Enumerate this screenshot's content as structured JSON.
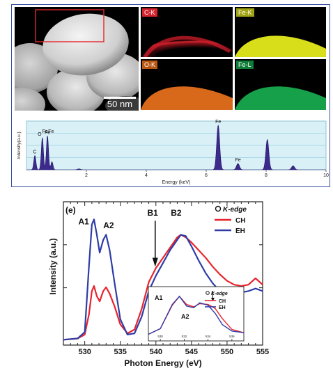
{
  "top_panel": {
    "scale_bar_label": "50 nm",
    "maps": [
      {
        "label": "C-K",
        "color": "#d4232e"
      },
      {
        "label": "Fe-K",
        "color": "#e3e81e"
      },
      {
        "label": "O-K",
        "color": "#e0701c"
      },
      {
        "label": "Fe-L",
        "color": "#17a24a"
      }
    ]
  },
  "chart_data": [
    {
      "type": "area",
      "title": "",
      "xlabel": "Energy (keV)",
      "ylabel": "Intensity(a.u.)",
      "xlim": [
        0,
        10
      ],
      "x_ticks": [
        "2",
        "4",
        "6",
        "8",
        "10"
      ],
      "grid": true,
      "fill_color": "#3d2a8c",
      "peaks": [
        {
          "label": "C",
          "x": 0.28,
          "y": 0.32
        },
        {
          "label": "O",
          "x": 0.53,
          "y": 0.72
        },
        {
          "label": "Fe",
          "x": 0.7,
          "y": 0.76
        },
        {
          "label": "",
          "x": 0.85,
          "y": 0.18
        },
        {
          "label": "",
          "x": 1.75,
          "y": 0.02
        },
        {
          "label": "Fe",
          "x": 6.4,
          "y": 1.0
        },
        {
          "label": "Fe",
          "x": 7.06,
          "y": 0.14
        },
        {
          "label": "",
          "x": 8.04,
          "y": 0.68
        },
        {
          "label": "",
          "x": 8.9,
          "y": 0.09
        }
      ],
      "top_labels": [
        "Fe",
        "Fe"
      ]
    },
    {
      "type": "line",
      "panel_label": "(e)",
      "title": "",
      "xlabel": "Photon Energy (eV)",
      "ylabel": "Intensity (a.u.)",
      "xlim": [
        527,
        555
      ],
      "x_ticks": [
        530,
        535,
        540,
        545,
        550,
        555
      ],
      "legend": {
        "title": "O K-edge",
        "placement": "top-right"
      },
      "annotations": [
        "A1",
        "A2",
        "B1",
        "B2"
      ],
      "series": [
        {
          "name": "CH",
          "color": "#e8242e",
          "x": [
            527,
            529,
            530,
            530.6,
            531.0,
            531.3,
            531.7,
            532.1,
            532.6,
            533.0,
            533.5,
            534.2,
            535,
            536,
            537,
            538,
            539,
            540,
            541,
            542,
            543,
            543.5,
            544.2,
            545,
            546,
            547,
            548,
            549,
            550,
            551,
            552,
            553,
            554,
            555
          ],
          "y": [
            0.02,
            0.03,
            0.06,
            0.22,
            0.4,
            0.44,
            0.36,
            0.32,
            0.4,
            0.43,
            0.38,
            0.28,
            0.14,
            0.07,
            0.1,
            0.26,
            0.47,
            0.58,
            0.66,
            0.74,
            0.82,
            0.84,
            0.82,
            0.78,
            0.72,
            0.66,
            0.59,
            0.53,
            0.48,
            0.45,
            0.44,
            0.45,
            0.5,
            0.45
          ]
        },
        {
          "name": "EH",
          "color": "#2e3da6",
          "x": [
            527,
            529,
            530,
            530.6,
            531.0,
            531.3,
            531.7,
            532.1,
            532.6,
            533.0,
            533.5,
            534.2,
            535,
            536,
            537,
            538,
            539,
            540,
            541,
            542,
            543,
            543.5,
            544.2,
            545,
            546,
            547,
            548,
            549,
            550,
            551,
            552,
            553,
            554,
            555
          ],
          "y": [
            0.02,
            0.03,
            0.08,
            0.6,
            0.92,
            0.96,
            0.84,
            0.7,
            0.8,
            0.84,
            0.72,
            0.46,
            0.18,
            0.06,
            0.07,
            0.2,
            0.4,
            0.52,
            0.62,
            0.72,
            0.8,
            0.84,
            0.83,
            0.75,
            0.64,
            0.54,
            0.46,
            0.4,
            0.39,
            0.38,
            0.39,
            0.4,
            0.42,
            0.4
          ]
        }
      ]
    },
    {
      "type": "line",
      "inset": true,
      "title": "",
      "xlim": [
        529,
        537
      ],
      "x_ticks": [
        "530",
        "532",
        "534",
        "536"
      ],
      "legend": {
        "title": "O K-edge",
        "placement": "top-right"
      },
      "annotations": [
        "A1",
        "A2"
      ],
      "series": [
        {
          "name": "CH",
          "color": "#e8242e",
          "x": [
            529,
            530,
            531,
            531.6,
            532.2,
            532.8,
            533.3,
            534,
            534.6,
            535.2,
            536,
            537
          ],
          "y": [
            0.06,
            0.2,
            0.78,
            1.0,
            0.8,
            0.74,
            0.82,
            0.8,
            0.7,
            0.45,
            0.18,
            0.1
          ]
        },
        {
          "name": "EH",
          "color": "#2e3da6",
          "x": [
            529,
            530,
            531,
            531.6,
            532.2,
            532.8,
            533.3,
            534,
            534.6,
            535.2,
            536,
            537
          ],
          "y": [
            0.06,
            0.2,
            0.8,
            1.0,
            0.76,
            0.72,
            0.84,
            0.78,
            0.58,
            0.3,
            0.14,
            0.1
          ]
        }
      ]
    }
  ]
}
